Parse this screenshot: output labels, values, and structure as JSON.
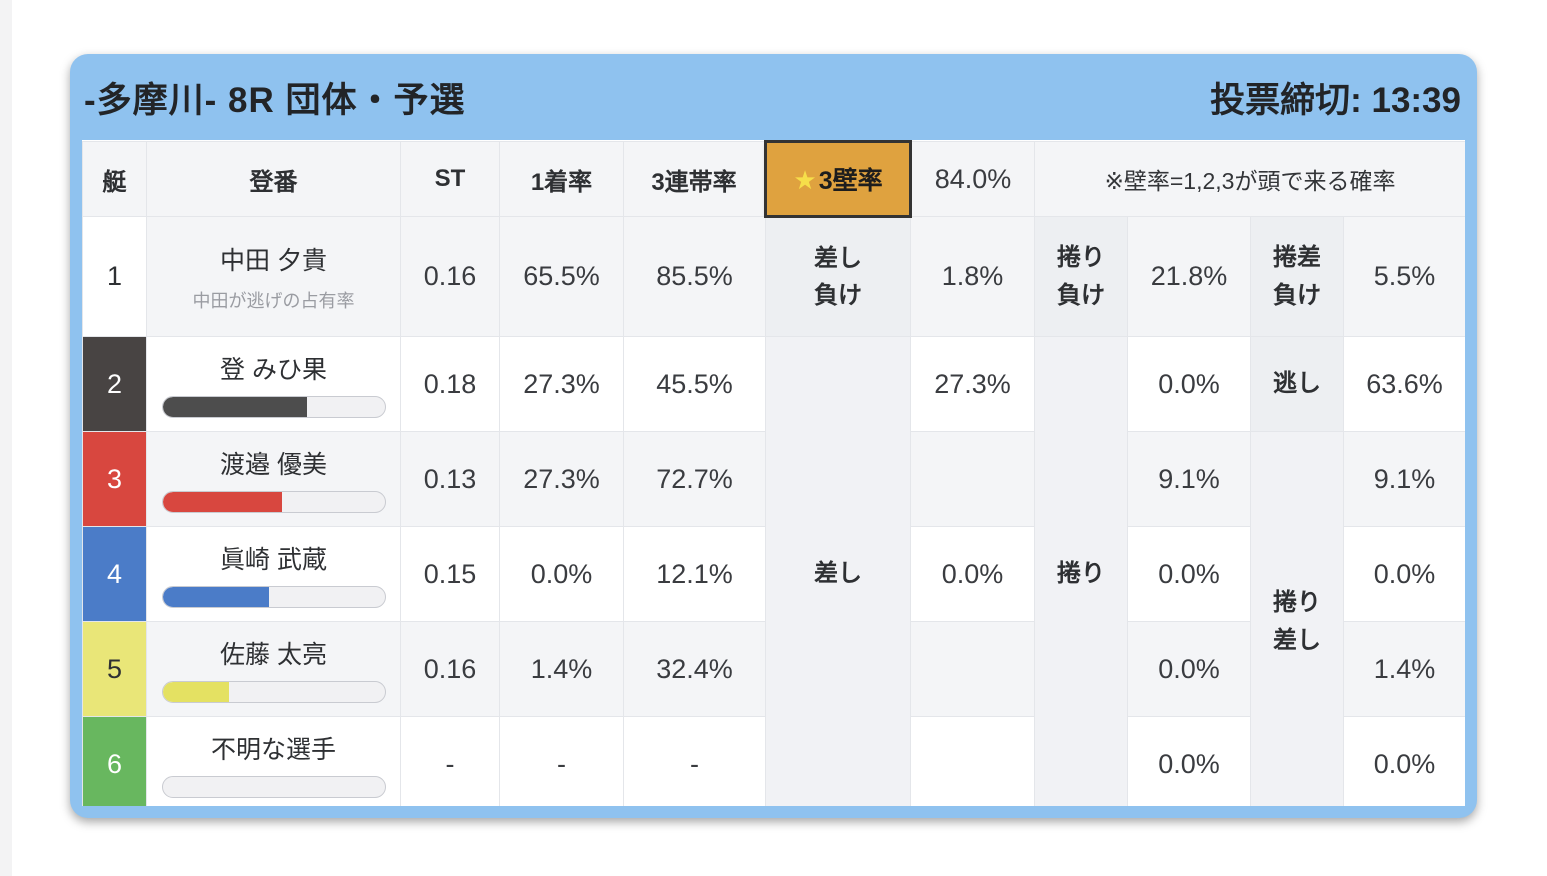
{
  "header": {
    "title": "-多摩川- 8R 団体・予選",
    "deadline": "投票締切: 13:39"
  },
  "table": {
    "columns": {
      "boat": "艇",
      "entry": "登番",
      "st": "ST",
      "first_rate": "1着率",
      "top3_rate": "3連帯率"
    },
    "wall": {
      "star_icon": "★",
      "label": "3壁率",
      "value": "84.0%",
      "note": "※壁率=1,2,3が頭で来る確率"
    },
    "merged_labels": {
      "sashi": "差し",
      "makuri": "捲り",
      "makuri_sashi": "捲り\n差し"
    },
    "rows": [
      {
        "num": "1",
        "name": "中田 夕貴",
        "sub": "中田が逃げの占有率",
        "st": "0.16",
        "first": "65.5%",
        "top3": "85.5%",
        "sashi_label": "差し\n負け",
        "sashi": "1.8%",
        "makuri_label": "捲り\n負け",
        "makuri": "21.8%",
        "third_label": "捲差\n負け",
        "third": "5.5%"
      },
      {
        "num": "2",
        "name": "登 みひ果",
        "st": "0.18",
        "first": "27.3%",
        "top3": "45.5%",
        "sashi": "27.3%",
        "makuri": "0.0%",
        "third_label": "逃し",
        "third": "63.6%",
        "bar": {
          "percent": 65,
          "color": "#4d4d4d"
        }
      },
      {
        "num": "3",
        "name": "渡邉 優美",
        "st": "0.13",
        "first": "27.3%",
        "top3": "72.7%",
        "sashi": "",
        "makuri": "9.1%",
        "third": "9.1%",
        "bar": {
          "percent": 54,
          "color": "#d8473f"
        }
      },
      {
        "num": "4",
        "name": "眞崎 武蔵",
        "st": "0.15",
        "first": "0.0%",
        "top3": "12.1%",
        "sashi": "0.0%",
        "makuri": "0.0%",
        "third": "0.0%",
        "bar": {
          "percent": 48,
          "color": "#4b7cc8"
        }
      },
      {
        "num": "5",
        "name": "佐藤 太亮",
        "st": "0.16",
        "first": "1.4%",
        "top3": "32.4%",
        "sashi": "",
        "makuri": "0.0%",
        "third": "1.4%",
        "bar": {
          "percent": 30,
          "color": "#e4e162"
        }
      },
      {
        "num": "6",
        "name": "不明な選手",
        "st": "-",
        "first": "-",
        "top3": "-",
        "sashi": "",
        "makuri": "0.0%",
        "third": "0.0%",
        "bar": {
          "percent": 0,
          "color": "transparent"
        }
      }
    ]
  },
  "colors": {
    "card_blue": "#8fc2ef",
    "wall_button_bg": "#dfa23f",
    "wall_star": "#f6de4a",
    "boat1": "#ffffff",
    "boat2": "#484443",
    "boat3": "#d8473f",
    "boat4": "#4b7cc8",
    "boat5": "#e9e678",
    "boat6": "#68b75f"
  }
}
